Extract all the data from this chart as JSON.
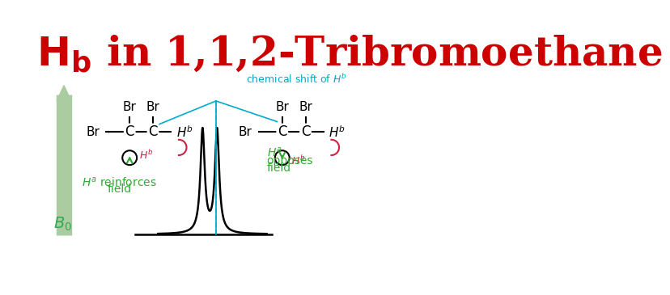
{
  "title_Hb": "H",
  "title_sub": "b",
  "title_rest": " in 1,1,2-Tribromoethane",
  "title_color": "#cc0000",
  "title_fontsize": 36,
  "bg_color": "#ffffff",
  "arrow_color": "#aacca0",
  "B0_color": "#33aa55",
  "chem_shift_color": "#00aacc",
  "green_text_color": "#33aa33",
  "dark_red_color": "#cc2244",
  "peak_color": "#000000",
  "bond_color": "#000000"
}
